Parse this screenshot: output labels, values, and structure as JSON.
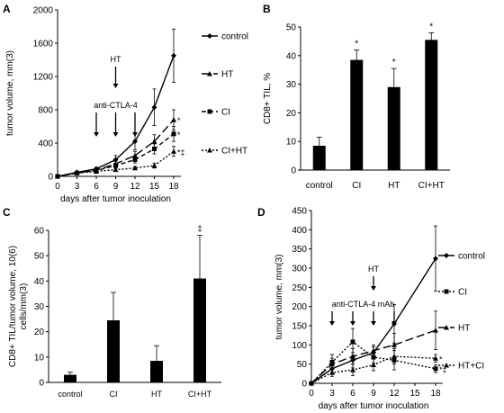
{
  "chart_data": [
    {
      "panel": "A",
      "type": "line",
      "xlabel": "days  after tumor inoculation",
      "ylabel": "tumor volume, mm(3)",
      "x": [
        0,
        3,
        6,
        9,
        12,
        15,
        18
      ],
      "xticks": [
        "0",
        "3",
        "6",
        "9",
        "12",
        "15",
        "18"
      ],
      "yticks": [
        "0",
        "400",
        "800",
        "1200",
        "1600",
        "2000"
      ],
      "ylim": [
        0,
        2000
      ],
      "annotations": {
        "ht": "HT",
        "ctla": "anti-CTLA-4"
      },
      "series": [
        {
          "name": "control",
          "style": "solid",
          "marker": "diamond",
          "values": [
            0,
            50,
            90,
            200,
            420,
            830,
            1450
          ],
          "errors": [
            0,
            10,
            20,
            50,
            100,
            220,
            320
          ],
          "sig": ""
        },
        {
          "name": "HT",
          "style": "longdash",
          "marker": "triangle",
          "values": [
            0,
            45,
            75,
            150,
            250,
            420,
            680
          ],
          "errors": [
            0,
            10,
            15,
            30,
            50,
            80,
            120
          ],
          "sig": "*"
        },
        {
          "name": "CI",
          "style": "dash",
          "marker": "square",
          "values": [
            0,
            40,
            70,
            130,
            200,
            330,
            510
          ],
          "errors": [
            0,
            10,
            15,
            25,
            40,
            60,
            90
          ],
          "sig": "*"
        },
        {
          "name": "CI+HT",
          "style": "dot",
          "marker": "triangle",
          "values": [
            0,
            40,
            60,
            80,
            100,
            130,
            300
          ],
          "errors": [
            0,
            8,
            10,
            15,
            20,
            30,
            60
          ],
          "sig": "*‡"
        }
      ]
    },
    {
      "panel": "B",
      "type": "bar",
      "ylabel": "CD8+ TIL, %",
      "categories": [
        "control",
        "CI",
        "HT",
        "CI+HT"
      ],
      "values": [
        8.5,
        38.5,
        29,
        45.5
      ],
      "errors": [
        3,
        3.5,
        6.5,
        2.5
      ],
      "marks": [
        "",
        "*",
        "*",
        "*"
      ],
      "ylim": [
        0,
        50
      ],
      "yticks": [
        "0",
        "10",
        "20",
        "30",
        "40",
        "50"
      ]
    },
    {
      "panel": "C",
      "type": "bar",
      "ylabel_lines": [
        "CD8+ TIL/tumor volume, 10(6)",
        "cells/mm(3)"
      ],
      "categories": [
        "control",
        "CI",
        "HT",
        "CI+HT"
      ],
      "values": [
        3,
        24.5,
        8.5,
        41
      ],
      "errors": [
        1,
        11,
        6,
        17
      ],
      "marks": [
        "",
        "",
        "",
        "‡"
      ],
      "ylim": [
        0,
        60
      ],
      "yticks": [
        "0",
        "10",
        "20",
        "30",
        "40",
        "50",
        "60"
      ]
    },
    {
      "panel": "D",
      "type": "line",
      "xlabel": "days after tumor inoculation",
      "ylabel": "tumor volume,  mm(3)",
      "x": [
        0,
        3,
        6,
        9,
        12,
        15,
        18
      ],
      "xticks": [
        "0",
        "3",
        "6",
        "9",
        "12",
        "15",
        "18"
      ],
      "yticks": [
        "0",
        "50",
        "100",
        "150",
        "200",
        "250",
        "300",
        "350",
        "400",
        "450"
      ],
      "ylim": [
        0,
        450
      ],
      "annotations": {
        "ht": "HT",
        "ctla": "anti-CTLA-4 mAb"
      },
      "series": [
        {
          "name": "control",
          "style": "solid",
          "marker": "diamond",
          "x": [
            0,
            3,
            6,
            9,
            12,
            18
          ],
          "values": [
            0,
            38,
            60,
            80,
            155,
            325
          ],
          "errors": [
            0,
            15,
            20,
            15,
            50,
            85
          ],
          "sig": ""
        },
        {
          "name": "CI",
          "style": "dot",
          "marker": "square",
          "x": [
            0,
            3,
            6,
            9,
            12,
            18
          ],
          "values": [
            0,
            55,
            108,
            68,
            60,
            38
          ],
          "errors": [
            0,
            20,
            35,
            15,
            25,
            10
          ],
          "sig": "*‡"
        },
        {
          "name": "HT",
          "style": "longdash",
          "marker": "triangle",
          "x": [
            0,
            3,
            6,
            9,
            12,
            18
          ],
          "values": [
            0,
            50,
            70,
            85,
            100,
            138
          ],
          "errors": [
            0,
            15,
            20,
            15,
            30,
            50
          ],
          "sig": ""
        },
        {
          "name": "HT+CI",
          "style": "dot",
          "marker": "triangle",
          "x": [
            0,
            3,
            6,
            9,
            12,
            18
          ],
          "values": [
            0,
            28,
            35,
            48,
            70,
            65
          ],
          "errors": [
            0,
            10,
            15,
            15,
            20,
            10
          ],
          "sig": "*"
        }
      ]
    }
  ]
}
